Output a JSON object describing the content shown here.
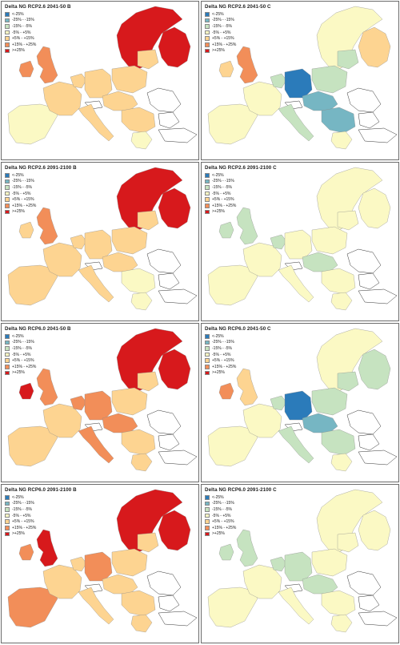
{
  "legend": [
    {
      "label": "<-25%",
      "color": "#2b7bba"
    },
    {
      "label": "-25% - -15%",
      "color": "#76b6c3"
    },
    {
      "label": "-15% - -5%",
      "color": "#c6e3c0"
    },
    {
      "label": "-5% - +5%",
      "color": "#fbf9c4"
    },
    {
      "label": "+5% - +15%",
      "color": "#fdd491"
    },
    {
      "label": "+15% - +25%",
      "color": "#f28e59"
    },
    {
      "label": ">+25%",
      "color": "#d7191c"
    }
  ],
  "panels": [
    {
      "title": "Delta NG RCP2.6 2041-50 B",
      "regions": {
        "scandinavia": ">+25%",
        "finland": ">+25%",
        "uk": "+15% - +25%",
        "ireland": "+15% - +25%",
        "iberia": "-5% - +5%",
        "france": "+5% - +15%",
        "benelux": "+5% - +15%",
        "germany": "+5% - +15%",
        "central": "+5% - +15%",
        "poland": "+5% - +15%",
        "italy": "+5% - +15%",
        "balkans": "+5% - +15%",
        "greece": "-5% - +5%",
        "baltics": "+5% - +15%"
      }
    },
    {
      "title": "Delta NG RCP2.6 2041-50 C",
      "regions": {
        "scandinavia": "-5% - +5%",
        "finland": "+5% - +15%",
        "uk": "+15% - +25%",
        "ireland": "+5% - +15%",
        "iberia": "-5% - +5%",
        "france": "-5% - +5%",
        "benelux": "-15% - -5%",
        "germany": "<-25%",
        "central": "-25% - -15%",
        "poland": "-15% - -5%",
        "italy": "-15% - -5%",
        "balkans": "-25% - -15%",
        "greece": "-5% - +5%",
        "baltics": "-15% - -5%"
      }
    },
    {
      "title": "Delta NG RCP2.6 2091-2100 B",
      "regions": {
        "scandinavia": ">+25%",
        "finland": ">+25%",
        "uk": "+15% - +25%",
        "ireland": "+5% - +15%",
        "iberia": "+5% - +15%",
        "france": "+5% - +15%",
        "benelux": "+5% - +15%",
        "germany": "+5% - +15%",
        "central": "+5% - +15%",
        "poland": "+5% - +15%",
        "italy": "+5% - +15%",
        "balkans": "-5% - +5%",
        "greece": "-5% - +5%",
        "baltics": "+5% - +15%"
      }
    },
    {
      "title": "Delta NG RCP2.6 2091-2100 C",
      "regions": {
        "scandinavia": "-5% - +5%",
        "finland": "-5% - +5%",
        "uk": "-15% - -5%",
        "ireland": "-15% - -5%",
        "iberia": "-5% - +5%",
        "france": "-5% - +5%",
        "benelux": "-15% - -5%",
        "germany": "-5% - +5%",
        "central": "-15% - -5%",
        "poland": "-5% - +5%",
        "italy": "-5% - +5%",
        "balkans": "-5% - +5%",
        "greece": "-5% - +5%",
        "baltics": "-5% - +5%"
      }
    },
    {
      "title": "Delta NG RCP6.0 2041-50 B",
      "regions": {
        "scandinavia": ">+25%",
        "finland": ">+25%",
        "uk": "+15% - +25%",
        "ireland": ">+25%",
        "iberia": "+5% - +15%",
        "france": "+5% - +15%",
        "benelux": "+15% - +25%",
        "germany": "+15% - +25%",
        "central": "+15% - +25%",
        "poland": "+5% - +15%",
        "italy": "+15% - +25%",
        "balkans": "+5% - +15%",
        "greece": "+5% - +15%",
        "baltics": "+5% - +15%"
      }
    },
    {
      "title": "Delta NG RCP6.0 2041-50 C",
      "regions": {
        "scandinavia": "-5% - +5%",
        "finland": "-15% - -5%",
        "uk": "+5% - +15%",
        "ireland": "+15% - +25%",
        "iberia": "-5% - +5%",
        "france": "-5% - +5%",
        "benelux": "-15% - -5%",
        "germany": "<-25%",
        "central": "-25% - -15%",
        "poland": "-15% - -5%",
        "italy": "-15% - -5%",
        "balkans": "-15% - -5%",
        "greece": "-5% - +5%",
        "baltics": "-15% - -5%"
      }
    },
    {
      "title": "Delta NG RCP6.0 2091-2100 B",
      "regions": {
        "scandinavia": ">+25%",
        "finland": ">+25%",
        "uk": ">+25%",
        "ireland": "+15% - +25%",
        "iberia": "+15% - +25%",
        "france": "+5% - +15%",
        "benelux": "+5% - +15%",
        "germany": "+15% - +25%",
        "central": "+5% - +15%",
        "poland": "+5% - +15%",
        "italy": "+5% - +15%",
        "balkans": "+5% - +15%",
        "greece": "+5% - +15%",
        "baltics": "+5% - +15%"
      }
    },
    {
      "title": "Delta NG RCP6.0 2091-2100 C",
      "regions": {
        "scandinavia": "-5% - +5%",
        "finland": "-5% - +5%",
        "uk": "-15% - -5%",
        "ireland": "-15% - -5%",
        "iberia": "-5% - +5%",
        "france": "-5% - +5%",
        "benelux": "-15% - -5%",
        "germany": "-15% - -5%",
        "central": "-15% - -5%",
        "poland": "-5% - +5%",
        "italy": "-5% - +5%",
        "balkans": "-5% - +5%",
        "greece": "-5% - +5%",
        "baltics": "-5% - +5%"
      }
    }
  ]
}
